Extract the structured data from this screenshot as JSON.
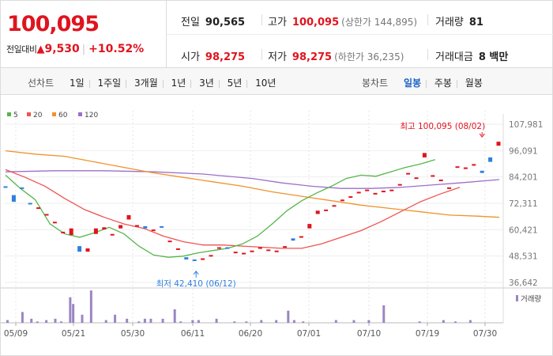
{
  "quote": {
    "price": "100,095",
    "change_label": "전일대비",
    "change_arrow": "▲",
    "change_value": "9,530",
    "change_separator": "|",
    "change_pct": "+10.52%"
  },
  "stats": {
    "prev_close": {
      "label": "전일",
      "value": "90,565"
    },
    "high": {
      "label": "고가",
      "value": "100,095",
      "limit": "(상한가 144,895)"
    },
    "volume": {
      "label": "거래량",
      "value": "81"
    },
    "open": {
      "label": "시가",
      "value": "98,275"
    },
    "low": {
      "label": "저가",
      "value": "98,275",
      "limit": "(하한가 36,235)"
    },
    "trade_value": {
      "label": "거래대금",
      "value": "8 백만"
    }
  },
  "toolbar": {
    "line_chart_title": "선차트",
    "line_periods": [
      "1일",
      "1주일",
      "3개월",
      "1년",
      "3년",
      "5년",
      "10년"
    ],
    "candle_chart_title": "봉차트",
    "candle_periods": [
      "일봉",
      "주봉",
      "월봉"
    ],
    "active_candle_period": "일봉"
  },
  "colors": {
    "up": "#e0141e",
    "down": "#2d7fe0",
    "ma5": "#55b64a",
    "ma20": "#ef5350",
    "ma60": "#f0922b",
    "ma120": "#9c6fc9",
    "volume": "#9b85c4",
    "accent": "#1a63c6"
  },
  "chart_data": {
    "type": "candlestick",
    "legend": [
      {
        "name": "5",
        "color": "#55b64a"
      },
      {
        "name": "20",
        "color": "#ef5350"
      },
      {
        "name": "60",
        "color": "#f0922b"
      },
      {
        "name": "120",
        "color": "#9c6fc9"
      }
    ],
    "y_ticks": [
      "107,981",
      "96,091",
      "84,201",
      "72,311",
      "60,421",
      "48,531",
      "36,642"
    ],
    "ylim": [
      36642,
      107981
    ],
    "x_ticks": [
      "05/09",
      "05/21",
      "05/30",
      "06/11",
      "06/20",
      "07/01",
      "07/10",
      "07/19",
      "07/30"
    ],
    "annotations": {
      "high": {
        "label": "최고 100,095 (08/02)",
        "value": 100095,
        "index": 58
      },
      "low": {
        "label": "최저 42,410 (06/12)",
        "value": 42410,
        "index": 23
      }
    },
    "volume_legend": "거래량",
    "candles": [
      {
        "o": 80000,
        "c": 79500
      },
      {
        "o": 76000,
        "c": 73000
      },
      {
        "o": 79500,
        "c": 79000
      },
      {
        "o": 72500,
        "c": 72000
      },
      {
        "o": 70000,
        "c": 70500
      },
      {
        "o": 67000,
        "c": 67500
      },
      {
        "o": 63500,
        "c": 64000
      },
      {
        "o": 59000,
        "c": 59500
      },
      {
        "o": 58000,
        "c": 61000
      },
      {
        "o": 53000,
        "c": 50500
      },
      {
        "o": 50500,
        "c": 52000
      },
      {
        "o": 58500,
        "c": 61000
      },
      {
        "o": 60500,
        "c": 61500
      },
      {
        "o": 58000,
        "c": 58500
      },
      {
        "o": 61000,
        "c": 62500
      },
      {
        "o": 65000,
        "c": 67000
      },
      {
        "o": 62000,
        "c": 62500
      },
      {
        "o": 62000,
        "c": 61000
      },
      {
        "o": 60000,
        "c": 60500
      },
      {
        "o": 62000,
        "c": 61500
      },
      {
        "o": 55000,
        "c": 55500
      },
      {
        "o": 51500,
        "c": 52000
      },
      {
        "o": 48000,
        "c": 47000
      },
      {
        "o": 47000,
        "c": 46500
      },
      {
        "o": 47000,
        "c": 47500
      },
      {
        "o": 48500,
        "c": 49000
      },
      {
        "o": 52500,
        "c": 52500
      },
      {
        "o": 52500,
        "c": 52000
      },
      {
        "o": 50500,
        "c": 50500
      },
      {
        "o": 49500,
        "c": 50000
      },
      {
        "o": 50500,
        "c": 51000
      },
      {
        "o": 52500,
        "c": 52500
      },
      {
        "o": 51500,
        "c": 51500
      },
      {
        "o": 50500,
        "c": 51000
      },
      {
        "o": 52500,
        "c": 53000
      },
      {
        "o": 56500,
        "c": 55500
      },
      {
        "o": 57000,
        "c": 57500
      },
      {
        "o": 61000,
        "c": 63000
      },
      {
        "o": 67500,
        "c": 69000
      },
      {
        "o": 69000,
        "c": 69500
      },
      {
        "o": 71000,
        "c": 71500
      },
      {
        "o": 73500,
        "c": 74000
      },
      {
        "o": 75000,
        "c": 75500
      },
      {
        "o": 77000,
        "c": 77500
      },
      {
        "o": 78500,
        "c": 78500
      },
      {
        "o": 76500,
        "c": 77000
      },
      {
        "o": 77500,
        "c": 78000
      },
      {
        "o": 78000,
        "c": 78500
      },
      {
        "o": 80500,
        "c": 81000
      },
      {
        "o": 85500,
        "c": 86000
      },
      {
        "o": 83500,
        "c": 84000
      },
      {
        "o": 93000,
        "c": 95000
      },
      {
        "o": 84500,
        "c": 85000
      },
      {
        "o": 82500,
        "c": 83000
      },
      {
        "o": 79500,
        "c": 79500
      },
      {
        "o": 88500,
        "c": 89000
      },
      {
        "o": 88000,
        "c": 88500
      },
      {
        "o": 89500,
        "c": 90000
      },
      {
        "o": 87000,
        "c": 86000
      },
      {
        "o": 93000,
        "c": 91000
      },
      {
        "o": 98275,
        "c": 100095
      }
    ],
    "ma5": [
      [
        0,
        85000
      ],
      [
        3,
        79000
      ],
      [
        6,
        74000
      ],
      [
        9,
        63000
      ],
      [
        12,
        58500
      ],
      [
        15,
        57000
      ],
      [
        18,
        59000
      ],
      [
        21,
        61500
      ],
      [
        24,
        58500
      ],
      [
        27,
        53000
      ],
      [
        30,
        49000
      ],
      [
        33,
        48000
      ],
      [
        36,
        48500
      ],
      [
        39,
        50000
      ],
      [
        42,
        51000
      ],
      [
        45,
        52000
      ],
      [
        48,
        54000
      ],
      [
        51,
        57500
      ],
      [
        54,
        63000
      ],
      [
        57,
        69000
      ],
      [
        60,
        73500
      ],
      [
        63,
        77000
      ],
      [
        66,
        80000
      ],
      [
        69,
        83500
      ],
      [
        72,
        85000
      ],
      [
        75,
        84500
      ],
      [
        78,
        86500
      ],
      [
        81,
        88500
      ],
      [
        84,
        90000
      ],
      [
        87,
        92000
      ]
    ],
    "ma20": [
      [
        0,
        87500
      ],
      [
        4,
        84000
      ],
      [
        8,
        80000
      ],
      [
        12,
        74500
      ],
      [
        16,
        69500
      ],
      [
        20,
        66000
      ],
      [
        24,
        63000
      ],
      [
        28,
        61000
      ],
      [
        32,
        57500
      ],
      [
        36,
        55000
      ],
      [
        40,
        53500
      ],
      [
        44,
        53500
      ],
      [
        48,
        53000
      ],
      [
        52,
        52500
      ],
      [
        56,
        52000
      ],
      [
        60,
        52000
      ],
      [
        64,
        54000
      ],
      [
        68,
        57000
      ],
      [
        72,
        60000
      ],
      [
        76,
        64000
      ],
      [
        80,
        68500
      ],
      [
        84,
        73000
      ],
      [
        88,
        76500
      ],
      [
        92,
        79500
      ]
    ],
    "ma60": [
      [
        0,
        96000
      ],
      [
        6,
        94500
      ],
      [
        12,
        93500
      ],
      [
        18,
        91000
      ],
      [
        24,
        88500
      ],
      [
        30,
        86000
      ],
      [
        36,
        84000
      ],
      [
        42,
        82000
      ],
      [
        48,
        80000
      ],
      [
        54,
        77500
      ],
      [
        60,
        75500
      ],
      [
        66,
        73500
      ],
      [
        72,
        71500
      ],
      [
        78,
        70000
      ],
      [
        84,
        68500
      ],
      [
        90,
        67000
      ],
      [
        96,
        66500
      ],
      [
        100,
        66000
      ]
    ],
    "ma120": [
      [
        0,
        86500
      ],
      [
        10,
        87000
      ],
      [
        20,
        87000
      ],
      [
        30,
        86500
      ],
      [
        40,
        85500
      ],
      [
        50,
        83500
      ],
      [
        56,
        81500
      ],
      [
        62,
        80000
      ],
      [
        68,
        79000
      ],
      [
        74,
        79000
      ],
      [
        80,
        79500
      ],
      [
        86,
        80500
      ],
      [
        92,
        81500
      ],
      [
        100,
        83000
      ]
    ],
    "volume": [
      {
        "i": 0,
        "h": 2
      },
      {
        "i": 5,
        "h": 8
      },
      {
        "i": 8,
        "h": 3
      },
      {
        "i": 10,
        "h": 1
      },
      {
        "i": 13,
        "h": 2
      },
      {
        "i": 16,
        "h": 3
      },
      {
        "i": 18,
        "h": 1
      },
      {
        "i": 21,
        "h": 19
      },
      {
        "i": 22,
        "h": 14
      },
      {
        "i": 25,
        "h": 6
      },
      {
        "i": 28,
        "h": 24
      },
      {
        "i": 33,
        "h": 2
      },
      {
        "i": 36,
        "h": 6
      },
      {
        "i": 40,
        "h": 3
      },
      {
        "i": 44,
        "h": 1
      },
      {
        "i": 46,
        "h": 3
      },
      {
        "i": 48,
        "h": 3
      },
      {
        "i": 52,
        "h": 3
      },
      {
        "i": 56,
        "h": 10
      },
      {
        "i": 58,
        "h": 1
      },
      {
        "i": 62,
        "h": 2
      },
      {
        "i": 64,
        "h": 2
      },
      {
        "i": 70,
        "h": 3
      },
      {
        "i": 76,
        "h": 1
      },
      {
        "i": 80,
        "h": 1
      },
      {
        "i": 85,
        "h": 2
      },
      {
        "i": 90,
        "h": 2
      },
      {
        "i": 94,
        "h": 9
      },
      {
        "i": 96,
        "h": 2
      },
      {
        "i": 99,
        "h": 1
      },
      {
        "i": 110,
        "h": 2
      },
      {
        "i": 116,
        "h": 2
      },
      {
        "i": 121,
        "h": 2
      },
      {
        "i": 126,
        "h": 13
      },
      {
        "i": 138,
        "h": 1
      },
      {
        "i": 146,
        "h": 2
      },
      {
        "i": 150,
        "h": 1
      },
      {
        "i": 155,
        "h": 2
      }
    ]
  }
}
